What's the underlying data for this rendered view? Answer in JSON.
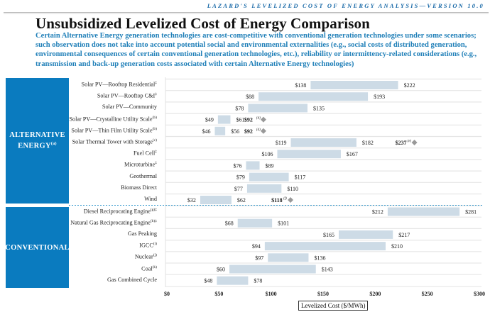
{
  "header": {
    "tag": "LAZARD'S LEVELIZED COST OF ENERGY ANALYSIS—VERSION 10.0",
    "title": "Unsubsidized Levelized Cost of Energy Comparison",
    "subtitle": "Certain Alternative Energy generation technologies are cost-competitive with conventional generation technologies under some scenarios; such observation does not take into account potential social and environmental externalities (e.g., social costs of distributed generation, environmental consequences of certain conventional generation technologies, etc.), reliability or intermittency-related considerations (e.g., transmission and back-up generation costs associated with certain Alternative Energy technologies)"
  },
  "categories": {
    "alternative": {
      "label": "ALTERNATIVE ENERGY",
      "note": "(a)"
    },
    "conventional": {
      "label": "CONVENTIONAL",
      "note": ""
    }
  },
  "colors": {
    "bar": "#cddbe6",
    "category_box": "#0a7bbf",
    "subtitle": "#1f7fb8",
    "diamond": "#999999",
    "divider": "#3b9ccf"
  },
  "chart_data": {
    "type": "bar",
    "subtype": "floating-range-horizontal",
    "title": "Unsubsidized Levelized Cost of Energy Comparison",
    "xlabel": "Levelized Cost ($/MWh)",
    "ylabel": "",
    "xlim": [
      0,
      300
    ],
    "xticks": [
      0,
      50,
      100,
      150,
      200,
      250,
      300
    ],
    "xtick_labels": [
      "$0",
      "$50",
      "$100",
      "$150",
      "$200",
      "$250",
      "$300"
    ],
    "grid": "horizontal-row-separators",
    "legend": "none",
    "series": [
      {
        "group": "alternative",
        "name": "Solar PV—Rooftop Residential",
        "note": "‡",
        "low": 138,
        "high": 222
      },
      {
        "group": "alternative",
        "name": "Solar PV—Rooftop C&I",
        "note": "‡",
        "low": 88,
        "high": 193
      },
      {
        "group": "alternative",
        "name": "Solar PV—Community",
        "note": "",
        "low": 78,
        "high": 135
      },
      {
        "group": "alternative",
        "name": "Solar PV—Crystalline Utility Scale",
        "note": "(b)",
        "low": 49,
        "high": 61,
        "marker": 92,
        "marker_note": "(d)"
      },
      {
        "group": "alternative",
        "name": "Solar PV—Thin Film Utility Scale",
        "note": "(b)",
        "low": 46,
        "high": 56,
        "marker": 92,
        "marker_note": "(d)"
      },
      {
        "group": "alternative",
        "name": "Solar Thermal Tower with Storage",
        "note": "(c)",
        "low": 119,
        "high": 182,
        "marker": 237,
        "marker_note": "(e)"
      },
      {
        "group": "alternative",
        "name": "Fuel Cell",
        "note": "‡",
        "low": 106,
        "high": 167
      },
      {
        "group": "alternative",
        "name": "Microturbine",
        "note": "‡",
        "low": 76,
        "high": 89
      },
      {
        "group": "alternative",
        "name": "Geothermal",
        "note": "",
        "low": 79,
        "high": 117
      },
      {
        "group": "alternative",
        "name": "Biomass Direct",
        "note": "",
        "low": 77,
        "high": 110
      },
      {
        "group": "alternative",
        "name": "Wind",
        "note": "",
        "low": 32,
        "high": 62,
        "marker": 118,
        "marker_note": "(f)"
      },
      {
        "group": "conventional",
        "name": "Diesel Reciprocating Engine",
        "note": "(g)‡",
        "low": 212,
        "high": 281
      },
      {
        "group": "conventional",
        "name": "Natural Gas Reciprocating Engine",
        "note": "(h)‡",
        "low": 68,
        "high": 101
      },
      {
        "group": "conventional",
        "name": "Gas Peaking",
        "note": "",
        "low": 165,
        "high": 217
      },
      {
        "group": "conventional",
        "name": "IGCC",
        "note": "(i)",
        "low": 94,
        "high": 210
      },
      {
        "group": "conventional",
        "name": "Nuclear",
        "note": "(j)",
        "low": 97,
        "high": 136
      },
      {
        "group": "conventional",
        "name": "Coal",
        "note": "(k)",
        "low": 60,
        "high": 143
      },
      {
        "group": "conventional",
        "name": "Gas Combined Cycle",
        "note": "",
        "low": 48,
        "high": 78
      }
    ]
  }
}
